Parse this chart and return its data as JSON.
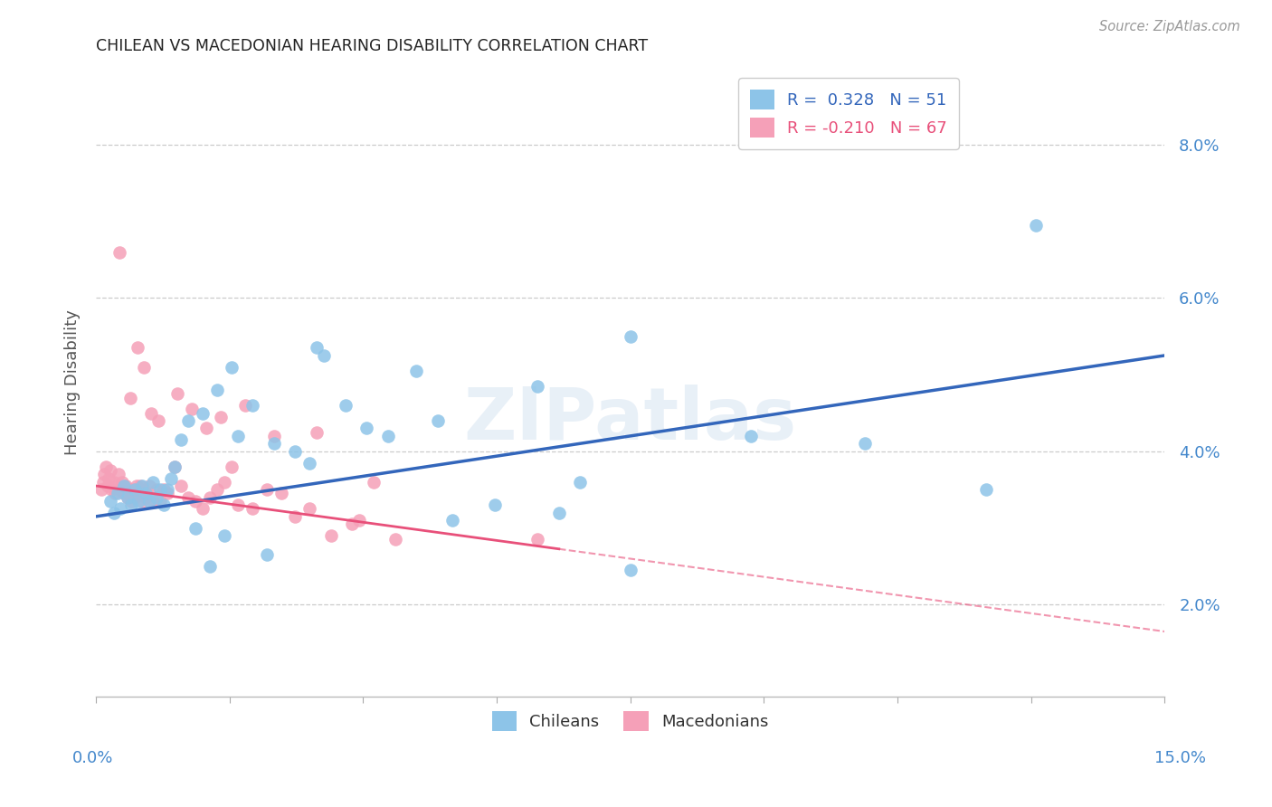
{
  "title": "CHILEAN VS MACEDONIAN HEARING DISABILITY CORRELATION CHART",
  "source": "Source: ZipAtlas.com",
  "ylabel": "Hearing Disability",
  "xmin": 0.0,
  "xmax": 15.0,
  "ymin": 0.8,
  "ymax": 9.0,
  "yticks": [
    2.0,
    4.0,
    6.0,
    8.0
  ],
  "blue_R": 0.328,
  "blue_N": 51,
  "pink_R": -0.21,
  "pink_N": 67,
  "blue_dot_color": "#8dc4e8",
  "pink_dot_color": "#f5a0b8",
  "blue_line_color": "#3366bb",
  "pink_line_color": "#e8507a",
  "watermark": "ZIPatlas",
  "blue_line_x0": 0.0,
  "blue_line_y0": 3.15,
  "blue_line_x1": 15.0,
  "blue_line_y1": 5.25,
  "pink_line_x0": 0.0,
  "pink_line_y0": 3.55,
  "pink_line_x1": 15.0,
  "pink_line_y1": 1.65,
  "pink_solid_end": 6.5,
  "chileans_x": [
    0.2,
    0.25,
    0.3,
    0.35,
    0.4,
    0.45,
    0.5,
    0.55,
    0.6,
    0.65,
    0.7,
    0.75,
    0.8,
    0.85,
    0.9,
    0.95,
    1.0,
    1.05,
    1.1,
    1.2,
    1.3,
    1.5,
    1.7,
    1.9,
    2.0,
    2.2,
    2.5,
    2.8,
    3.0,
    3.2,
    3.5,
    3.8,
    4.1,
    4.5,
    5.0,
    5.6,
    6.2,
    6.8,
    7.5,
    9.2,
    10.8,
    12.5,
    1.4,
    1.6,
    1.8,
    2.4,
    3.1,
    4.8,
    6.5,
    7.5,
    13.2
  ],
  "chileans_y": [
    3.35,
    3.2,
    3.45,
    3.25,
    3.55,
    3.4,
    3.3,
    3.5,
    3.35,
    3.55,
    3.45,
    3.35,
    3.6,
    3.4,
    3.5,
    3.3,
    3.5,
    3.65,
    3.8,
    4.15,
    4.4,
    4.5,
    4.8,
    5.1,
    4.2,
    4.6,
    4.1,
    4.0,
    3.85,
    5.25,
    4.6,
    4.3,
    4.2,
    5.05,
    3.1,
    3.3,
    4.85,
    3.6,
    2.45,
    4.2,
    4.1,
    3.5,
    3.0,
    2.5,
    2.9,
    2.65,
    5.35,
    4.4,
    3.2,
    5.5,
    6.95
  ],
  "macedonians_x": [
    0.08,
    0.1,
    0.12,
    0.14,
    0.16,
    0.18,
    0.2,
    0.22,
    0.25,
    0.27,
    0.3,
    0.32,
    0.35,
    0.37,
    0.4,
    0.42,
    0.45,
    0.47,
    0.5,
    0.52,
    0.55,
    0.57,
    0.6,
    0.62,
    0.65,
    0.67,
    0.7,
    0.75,
    0.8,
    0.85,
    0.9,
    0.95,
    1.0,
    1.1,
    1.2,
    1.3,
    1.4,
    1.5,
    1.6,
    1.7,
    1.8,
    1.9,
    2.0,
    2.2,
    2.4,
    2.6,
    2.8,
    3.0,
    3.3,
    3.6,
    3.9,
    4.2,
    0.48,
    0.58,
    0.68,
    0.78,
    0.88,
    1.15,
    1.35,
    1.55,
    1.75,
    2.1,
    2.5,
    3.1,
    3.7,
    6.2,
    0.33
  ],
  "macedonians_y": [
    3.5,
    3.6,
    3.7,
    3.8,
    3.55,
    3.65,
    3.75,
    3.5,
    3.6,
    3.45,
    3.55,
    3.7,
    3.5,
    3.6,
    3.45,
    3.55,
    3.4,
    3.5,
    3.35,
    3.5,
    3.4,
    3.55,
    3.45,
    3.55,
    3.35,
    3.5,
    3.4,
    3.55,
    3.35,
    3.5,
    3.35,
    3.5,
    3.45,
    3.8,
    3.55,
    3.4,
    3.35,
    3.25,
    3.4,
    3.5,
    3.6,
    3.8,
    3.3,
    3.25,
    3.5,
    3.45,
    3.15,
    3.25,
    2.9,
    3.05,
    3.6,
    2.85,
    4.7,
    5.35,
    5.1,
    4.5,
    4.4,
    4.75,
    4.55,
    4.3,
    4.45,
    4.6,
    4.2,
    4.25,
    3.1,
    2.85,
    6.6
  ]
}
